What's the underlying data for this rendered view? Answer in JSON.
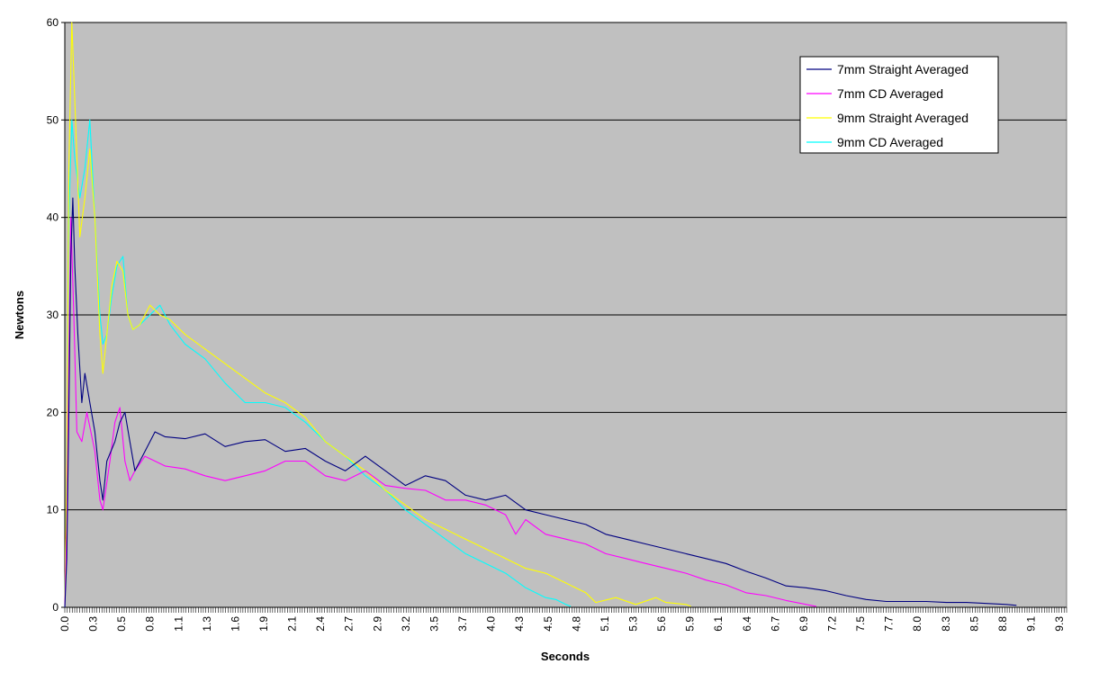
{
  "chart_data": {
    "type": "line",
    "xlabel": "Seconds",
    "ylabel": "Newtons",
    "xlim": [
      0,
      10.0
    ],
    "ylim": [
      0,
      60
    ],
    "y_ticks": [
      0,
      10,
      20,
      30,
      40,
      50,
      60
    ],
    "x_tick_labels": [
      "0.0",
      "0.3",
      "0.5",
      "0.8",
      "1.1",
      "1.3",
      "1.6",
      "1.9",
      "2.1",
      "2.4",
      "2.7",
      "2.9",
      "3.2",
      "3.5",
      "3.7",
      "4.0",
      "4.3",
      "4.5",
      "4.8",
      "5.1",
      "5.3",
      "5.6",
      "5.9",
      "6.1",
      "6.4",
      "6.7",
      "6.9",
      "7.2",
      "7.5",
      "7.7",
      "8.0",
      "8.3",
      "8.5",
      "8.8",
      "9.1",
      "9.3"
    ],
    "grid": "horizontal",
    "plot_background": "#c0c0c0",
    "legend_position": "top-right",
    "series": [
      {
        "name": "7mm Straight Averaged",
        "color": "#000080",
        "points": [
          [
            0,
            0
          ],
          [
            0.02,
            5
          ],
          [
            0.04,
            20
          ],
          [
            0.06,
            36
          ],
          [
            0.08,
            42
          ],
          [
            0.1,
            35
          ],
          [
            0.13,
            28
          ],
          [
            0.17,
            21
          ],
          [
            0.2,
            24
          ],
          [
            0.25,
            21
          ],
          [
            0.3,
            18
          ],
          [
            0.35,
            13
          ],
          [
            0.38,
            11
          ],
          [
            0.42,
            15
          ],
          [
            0.5,
            17
          ],
          [
            0.55,
            19
          ],
          [
            0.6,
            20
          ],
          [
            0.65,
            17
          ],
          [
            0.7,
            14
          ],
          [
            0.8,
            16
          ],
          [
            0.9,
            18
          ],
          [
            1.0,
            17.5
          ],
          [
            1.2,
            17.3
          ],
          [
            1.4,
            17.8
          ],
          [
            1.6,
            16.5
          ],
          [
            1.8,
            17
          ],
          [
            2.0,
            17.2
          ],
          [
            2.2,
            16
          ],
          [
            2.4,
            16.3
          ],
          [
            2.6,
            15
          ],
          [
            2.8,
            14
          ],
          [
            3.0,
            15.5
          ],
          [
            3.2,
            14
          ],
          [
            3.4,
            12.5
          ],
          [
            3.6,
            13.5
          ],
          [
            3.8,
            13
          ],
          [
            4.0,
            11.5
          ],
          [
            4.2,
            11
          ],
          [
            4.4,
            11.5
          ],
          [
            4.6,
            10
          ],
          [
            4.8,
            9.5
          ],
          [
            5.0,
            9
          ],
          [
            5.2,
            8.5
          ],
          [
            5.4,
            7.5
          ],
          [
            5.6,
            7
          ],
          [
            5.8,
            6.5
          ],
          [
            6.0,
            6
          ],
          [
            6.2,
            5.5
          ],
          [
            6.4,
            5
          ],
          [
            6.6,
            4.5
          ],
          [
            6.8,
            3.7
          ],
          [
            7.0,
            3
          ],
          [
            7.2,
            2.2
          ],
          [
            7.4,
            2
          ],
          [
            7.6,
            1.7
          ],
          [
            7.8,
            1.2
          ],
          [
            8.0,
            0.8
          ],
          [
            8.2,
            0.6
          ],
          [
            8.4,
            0.6
          ],
          [
            8.6,
            0.6
          ],
          [
            8.8,
            0.5
          ],
          [
            9.0,
            0.5
          ],
          [
            9.2,
            0.4
          ],
          [
            9.4,
            0.3
          ],
          [
            9.5,
            0.2
          ]
        ]
      },
      {
        "name": "7mm CD Averaged",
        "color": "#ff00ff",
        "points": [
          [
            0,
            0
          ],
          [
            0.02,
            8
          ],
          [
            0.04,
            25
          ],
          [
            0.06,
            40
          ],
          [
            0.09,
            30
          ],
          [
            0.12,
            18
          ],
          [
            0.17,
            17
          ],
          [
            0.22,
            20
          ],
          [
            0.3,
            16
          ],
          [
            0.35,
            11
          ],
          [
            0.38,
            10
          ],
          [
            0.45,
            15
          ],
          [
            0.5,
            19
          ],
          [
            0.55,
            20.5
          ],
          [
            0.6,
            15
          ],
          [
            0.65,
            13
          ],
          [
            0.7,
            14
          ],
          [
            0.8,
            15.5
          ],
          [
            0.9,
            15
          ],
          [
            1.0,
            14.5
          ],
          [
            1.2,
            14.2
          ],
          [
            1.4,
            13.5
          ],
          [
            1.6,
            13
          ],
          [
            1.8,
            13.5
          ],
          [
            2.0,
            14
          ],
          [
            2.2,
            15
          ],
          [
            2.4,
            15
          ],
          [
            2.6,
            13.5
          ],
          [
            2.8,
            13
          ],
          [
            3.0,
            14
          ],
          [
            3.2,
            12.5
          ],
          [
            3.4,
            12.2
          ],
          [
            3.6,
            12
          ],
          [
            3.8,
            11
          ],
          [
            4.0,
            11
          ],
          [
            4.2,
            10.5
          ],
          [
            4.4,
            9.5
          ],
          [
            4.5,
            7.5
          ],
          [
            4.6,
            9
          ],
          [
            4.8,
            7.5
          ],
          [
            5.0,
            7
          ],
          [
            5.2,
            6.5
          ],
          [
            5.4,
            5.5
          ],
          [
            5.6,
            5
          ],
          [
            5.8,
            4.5
          ],
          [
            6.0,
            4
          ],
          [
            6.2,
            3.5
          ],
          [
            6.4,
            2.8
          ],
          [
            6.6,
            2.3
          ],
          [
            6.8,
            1.5
          ],
          [
            7.0,
            1.2
          ],
          [
            7.2,
            0.7
          ],
          [
            7.4,
            0.3
          ],
          [
            7.5,
            0.1
          ]
        ]
      },
      {
        "name": "9mm Straight Averaged",
        "color": "#ffff00",
        "points": [
          [
            0,
            0
          ],
          [
            0.02,
            15
          ],
          [
            0.04,
            45
          ],
          [
            0.07,
            60
          ],
          [
            0.1,
            52
          ],
          [
            0.15,
            38
          ],
          [
            0.2,
            42
          ],
          [
            0.25,
            47
          ],
          [
            0.3,
            40
          ],
          [
            0.35,
            28
          ],
          [
            0.38,
            24
          ],
          [
            0.42,
            28
          ],
          [
            0.47,
            33
          ],
          [
            0.52,
            35.5
          ],
          [
            0.58,
            34.5
          ],
          [
            0.63,
            30
          ],
          [
            0.68,
            28.5
          ],
          [
            0.75,
            29
          ],
          [
            0.85,
            31
          ],
          [
            0.95,
            30
          ],
          [
            1.05,
            29.5
          ],
          [
            1.2,
            28
          ],
          [
            1.4,
            26.5
          ],
          [
            1.6,
            25
          ],
          [
            1.8,
            23.5
          ],
          [
            2.0,
            22
          ],
          [
            2.2,
            21
          ],
          [
            2.4,
            19.5
          ],
          [
            2.6,
            17
          ],
          [
            2.8,
            15.5
          ],
          [
            3.0,
            14
          ],
          [
            3.2,
            12
          ],
          [
            3.4,
            10.5
          ],
          [
            3.6,
            9
          ],
          [
            3.8,
            8
          ],
          [
            4.0,
            7
          ],
          [
            4.2,
            6
          ],
          [
            4.4,
            5
          ],
          [
            4.6,
            4
          ],
          [
            4.8,
            3.5
          ],
          [
            5.0,
            2.5
          ],
          [
            5.2,
            1.5
          ],
          [
            5.3,
            0.5
          ],
          [
            5.5,
            1
          ],
          [
            5.7,
            0.3
          ],
          [
            5.9,
            1
          ],
          [
            6.0,
            0.5
          ],
          [
            6.2,
            0.3
          ],
          [
            6.25,
            0.1
          ]
        ]
      },
      {
        "name": "9mm CD Averaged",
        "color": "#00ffff",
        "points": [
          [
            0,
            0
          ],
          [
            0.02,
            15
          ],
          [
            0.04,
            40
          ],
          [
            0.07,
            50
          ],
          [
            0.1,
            46
          ],
          [
            0.15,
            42
          ],
          [
            0.2,
            45
          ],
          [
            0.25,
            50
          ],
          [
            0.3,
            40
          ],
          [
            0.35,
            30
          ],
          [
            0.38,
            27
          ],
          [
            0.42,
            28
          ],
          [
            0.47,
            32
          ],
          [
            0.52,
            35
          ],
          [
            0.58,
            36
          ],
          [
            0.63,
            30
          ],
          [
            0.68,
            28.5
          ],
          [
            0.75,
            29
          ],
          [
            0.85,
            30
          ],
          [
            0.95,
            31
          ],
          [
            1.05,
            29
          ],
          [
            1.2,
            27
          ],
          [
            1.4,
            25.5
          ],
          [
            1.6,
            23
          ],
          [
            1.8,
            21
          ],
          [
            2.0,
            21
          ],
          [
            2.2,
            20.5
          ],
          [
            2.4,
            19
          ],
          [
            2.6,
            17
          ],
          [
            2.8,
            15.5
          ],
          [
            3.0,
            13.5
          ],
          [
            3.2,
            12
          ],
          [
            3.4,
            10
          ],
          [
            3.6,
            8.5
          ],
          [
            3.8,
            7
          ],
          [
            4.0,
            5.5
          ],
          [
            4.2,
            4.5
          ],
          [
            4.4,
            3.5
          ],
          [
            4.6,
            2
          ],
          [
            4.8,
            1
          ],
          [
            4.9,
            0.8
          ],
          [
            5.0,
            0.3
          ],
          [
            5.05,
            0.1
          ]
        ]
      }
    ]
  }
}
